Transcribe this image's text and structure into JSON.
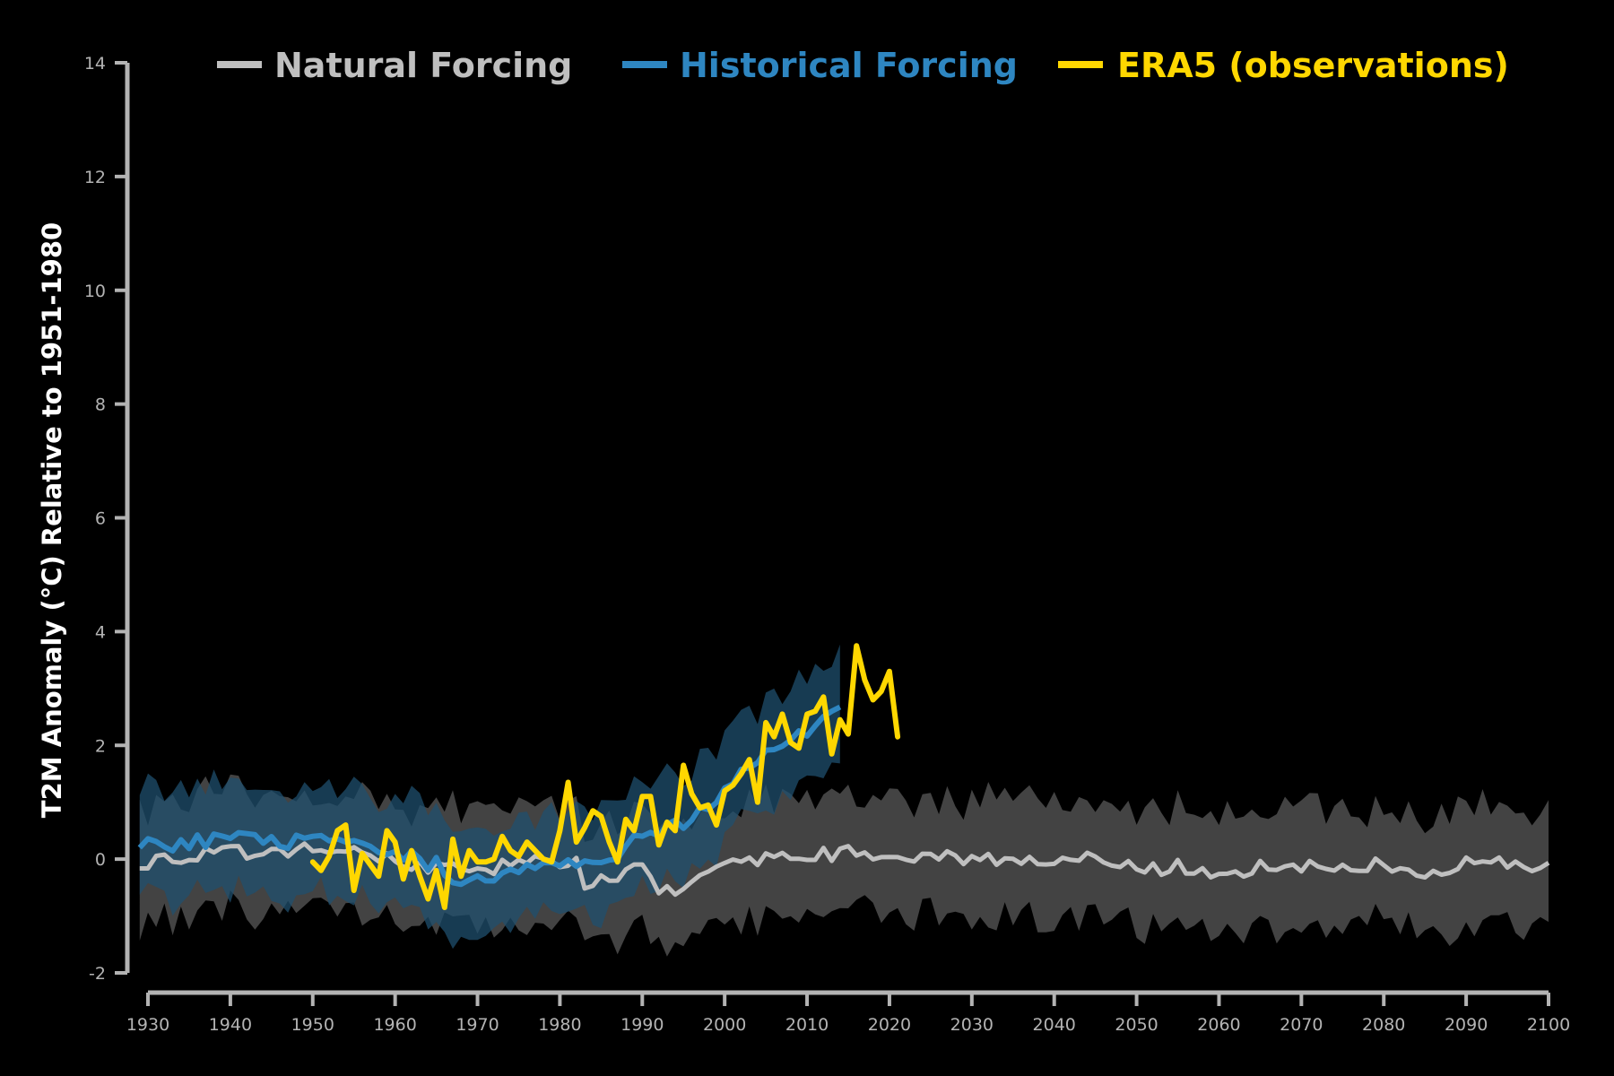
{
  "colors": {
    "background": "#000000",
    "axis": "#b3b3b3",
    "natural_line": "#bfbfbf",
    "natural_band": "#474747",
    "historical_line": "#2e86c1",
    "historical_band": "#1f4f6e",
    "era5_line": "#ffd700"
  },
  "chart_data": {
    "type": "line",
    "title": "",
    "xlabel": "",
    "ylabel": "T2M Anomaly (°C) Relative to 1951-1980",
    "xlim": [
      1929,
      2100
    ],
    "ylim": [
      -2,
      14
    ],
    "xticks": [
      1930,
      1940,
      1950,
      1960,
      1970,
      1980,
      1990,
      2000,
      2010,
      2020,
      2030,
      2040,
      2050,
      2060,
      2070,
      2080,
      2090,
      2100
    ],
    "yticks": [
      -2,
      0,
      2,
      4,
      6,
      8,
      10,
      12,
      14
    ],
    "grid": false,
    "legend_position": "top",
    "legend": [
      {
        "label": "Natural Forcing",
        "color": "#bfbfbf"
      },
      {
        "label": "Historical Forcing",
        "color": "#2e86c1"
      },
      {
        "label": "ERA5 (observations)",
        "color": "#ffd700"
      }
    ],
    "series": [
      {
        "name": "Natural Forcing",
        "kind": "mean_with_range",
        "x_start": 1929,
        "x_end": 2100,
        "mean_keypoints": [
          [
            1929,
            -0.05
          ],
          [
            1935,
            0.05
          ],
          [
            1940,
            0.1
          ],
          [
            1945,
            0.15
          ],
          [
            1950,
            0.15
          ],
          [
            1955,
            0.1
          ],
          [
            1960,
            0.0
          ],
          [
            1965,
            -0.15
          ],
          [
            1970,
            -0.15
          ],
          [
            1975,
            -0.1
          ],
          [
            1980,
            0.0
          ],
          [
            1982,
            -0.1
          ],
          [
            1983,
            -0.4
          ],
          [
            1985,
            -0.35
          ],
          [
            1988,
            -0.3
          ],
          [
            1990,
            -0.1
          ],
          [
            1992,
            -0.55
          ],
          [
            1994,
            -0.6
          ],
          [
            1997,
            -0.4
          ],
          [
            1999,
            -0.15
          ],
          [
            2002,
            -0.1
          ],
          [
            2005,
            0.1
          ],
          [
            2010,
            0.1
          ],
          [
            2015,
            0.1
          ],
          [
            2020,
            0.05
          ],
          [
            2025,
            0.1
          ],
          [
            2030,
            0.0
          ],
          [
            2035,
            0.05
          ],
          [
            2040,
            -0.1
          ],
          [
            2045,
            0.0
          ],
          [
            2050,
            -0.2
          ],
          [
            2055,
            -0.15
          ],
          [
            2060,
            -0.2
          ],
          [
            2065,
            -0.15
          ],
          [
            2070,
            -0.15
          ],
          [
            2075,
            -0.2
          ],
          [
            2080,
            -0.1
          ],
          [
            2085,
            -0.2
          ],
          [
            2090,
            -0.1
          ],
          [
            2095,
            -0.1
          ],
          [
            2100,
            -0.15
          ]
        ],
        "range_half_width": 1.0
      },
      {
        "name": "Historical Forcing",
        "kind": "mean_with_range",
        "x_start": 1929,
        "x_end": 2014,
        "mean_keypoints": [
          [
            1929,
            0.25
          ],
          [
            1935,
            0.3
          ],
          [
            1940,
            0.35
          ],
          [
            1945,
            0.3
          ],
          [
            1950,
            0.3
          ],
          [
            1955,
            0.2
          ],
          [
            1960,
            0.1
          ],
          [
            1965,
            -0.1
          ],
          [
            1969,
            -0.45
          ],
          [
            1972,
            -0.3
          ],
          [
            1975,
            -0.15
          ],
          [
            1980,
            0.0
          ],
          [
            1983,
            -0.05
          ],
          [
            1987,
            0.1
          ],
          [
            1990,
            0.5
          ],
          [
            1995,
            0.6
          ],
          [
            2000,
            1.25
          ],
          [
            2005,
            1.8
          ],
          [
            2010,
            2.3
          ],
          [
            2014,
            2.55
          ]
        ],
        "range_half_width": 0.9
      },
      {
        "name": "ERA5 (observations)",
        "kind": "line",
        "x": [
          1950,
          1951,
          1952,
          1953,
          1954,
          1955,
          1956,
          1957,
          1958,
          1959,
          1960,
          1961,
          1962,
          1963,
          1964,
          1965,
          1966,
          1967,
          1968,
          1969,
          1970,
          1971,
          1972,
          1973,
          1974,
          1975,
          1976,
          1977,
          1978,
          1979,
          1980,
          1981,
          1982,
          1983,
          1984,
          1985,
          1986,
          1987,
          1988,
          1989,
          1990,
          1991,
          1992,
          1993,
          1994,
          1995,
          1996,
          1997,
          1998,
          1999,
          2000,
          2001,
          2002,
          2003,
          2004,
          2005,
          2006,
          2007,
          2008,
          2009,
          2010,
          2011,
          2012,
          2013,
          2014,
          2015,
          2016,
          2017,
          2018,
          2019,
          2020,
          2021
        ],
        "y": [
          -0.05,
          -0.2,
          0.05,
          0.5,
          0.6,
          -0.55,
          0.1,
          -0.1,
          -0.3,
          0.5,
          0.3,
          -0.35,
          0.15,
          -0.3,
          -0.7,
          -0.2,
          -0.85,
          0.35,
          -0.3,
          0.15,
          -0.05,
          -0.05,
          0.0,
          0.4,
          0.15,
          0.05,
          0.3,
          0.15,
          0.0,
          -0.05,
          0.5,
          1.35,
          0.3,
          0.55,
          0.85,
          0.75,
          0.3,
          -0.05,
          0.7,
          0.5,
          1.1,
          1.1,
          0.25,
          0.65,
          0.5,
          1.65,
          1.15,
          0.9,
          0.95,
          0.6,
          1.2,
          1.3,
          1.5,
          1.75,
          1.0,
          2.4,
          2.15,
          2.55,
          2.05,
          1.95,
          2.55,
          2.6,
          2.85,
          1.85,
          2.45,
          2.2,
          3.75,
          3.15,
          2.8,
          2.95,
          3.3,
          2.15
        ]
      }
    ]
  }
}
